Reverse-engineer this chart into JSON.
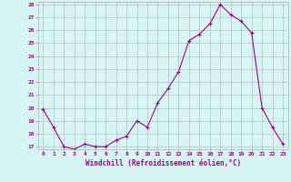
{
  "x": [
    0,
    1,
    2,
    3,
    4,
    5,
    6,
    7,
    8,
    9,
    10,
    11,
    12,
    13,
    14,
    15,
    16,
    17,
    18,
    19,
    20,
    21,
    22,
    23
  ],
  "y": [
    19.9,
    18.5,
    17.0,
    16.8,
    17.2,
    17.0,
    17.0,
    17.5,
    17.8,
    19.0,
    18.5,
    20.4,
    21.5,
    22.8,
    25.2,
    25.7,
    26.5,
    28.0,
    27.2,
    26.7,
    25.8,
    20.0,
    18.5,
    17.2
  ],
  "line_color": "#990099",
  "marker_color": "#990099",
  "bg_color": "#d8f5f5",
  "grid_color": "#b0b0b0",
  "xlabel": "Windchill (Refroidissement éolien,°C)",
  "xlabel_color": "#990099",
  "tick_color": "#990099",
  "ylim": [
    17,
    28
  ],
  "xlim": [
    -0.5,
    23.5
  ],
  "yticks": [
    17,
    18,
    19,
    20,
    21,
    22,
    23,
    24,
    25,
    26,
    27,
    28
  ],
  "xticks": [
    0,
    1,
    2,
    3,
    4,
    5,
    6,
    7,
    8,
    9,
    10,
    11,
    12,
    13,
    14,
    15,
    16,
    17,
    18,
    19,
    20,
    21,
    22,
    23
  ]
}
